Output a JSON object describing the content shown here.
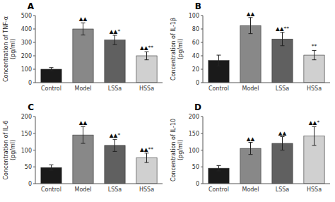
{
  "chart_data": [
    {
      "type": "bar",
      "title": "A",
      "y_label": "Concentration of TNF-α\n(pg/ml)",
      "categories": [
        "Control",
        "Model",
        "LSSa",
        "HSSa"
      ],
      "values": [
        100,
        400,
        318,
        200
      ],
      "errors": [
        12,
        45,
        35,
        30
      ],
      "annotations": [
        null,
        "▲▲",
        "▲▲*",
        "▲▲**"
      ],
      "colors": [
        "#1a1a1a",
        "#888888",
        "#606060",
        "#d0d0d0"
      ],
      "ylim": [
        0,
        500
      ],
      "yticks": [
        0,
        100,
        200,
        300,
        400,
        500
      ],
      "grid": false
    },
    {
      "type": "bar",
      "title": "B",
      "y_label": "Concentration of IL-1β\n(pg/ml)",
      "categories": [
        "Control",
        "Model",
        "LSSa",
        "HSSa"
      ],
      "values": [
        33,
        85,
        65,
        41
      ],
      "errors": [
        8,
        12,
        10,
        7
      ],
      "annotations": [
        null,
        "▲▲",
        "▲▲**",
        "**"
      ],
      "colors": [
        "#1a1a1a",
        "#888888",
        "#606060",
        "#d0d0d0"
      ],
      "ylim": [
        0,
        100
      ],
      "yticks": [
        0,
        20,
        40,
        60,
        80,
        100
      ],
      "grid": false
    },
    {
      "type": "bar",
      "title": "C",
      "y_label": "Concentration of IL-6\n(pg/ml)",
      "categories": [
        "Control",
        "Model",
        "LSSa",
        "HSSa"
      ],
      "values": [
        48,
        145,
        114,
        77
      ],
      "errors": [
        8,
        25,
        18,
        14
      ],
      "annotations": [
        null,
        "▲▲",
        "▲▲*",
        "▲▲**"
      ],
      "colors": [
        "#1a1a1a",
        "#888888",
        "#606060",
        "#d0d0d0"
      ],
      "ylim": [
        0,
        200
      ],
      "yticks": [
        0,
        50,
        100,
        150,
        200
      ],
      "grid": false
    },
    {
      "type": "bar",
      "title": "D",
      "y_label": "Concentration of IL-10\n(pg/ml)",
      "categories": [
        "Control",
        "Model",
        "LSSa",
        "HSSa"
      ],
      "values": [
        46,
        105,
        120,
        142
      ],
      "errors": [
        8,
        18,
        20,
        28
      ],
      "annotations": [
        null,
        "▲▲",
        "▲▲",
        "▲▲*"
      ],
      "colors": [
        "#1a1a1a",
        "#888888",
        "#606060",
        "#d0d0d0"
      ],
      "ylim": [
        0,
        200
      ],
      "yticks": [
        0,
        50,
        100,
        150,
        200
      ],
      "grid": false
    }
  ]
}
